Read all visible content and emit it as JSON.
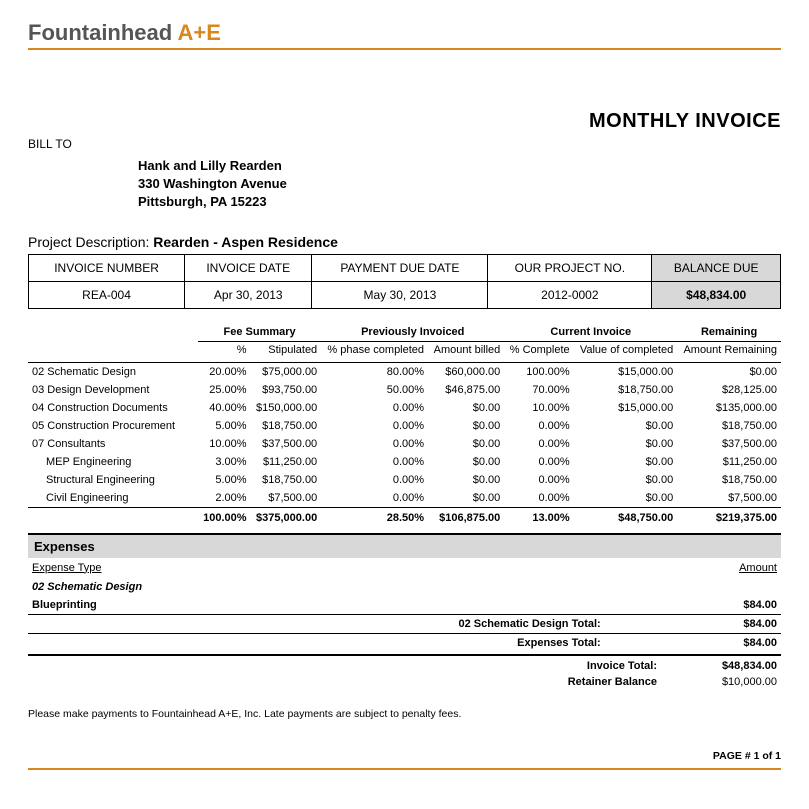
{
  "brand": {
    "name_a": "Fountainhead ",
    "name_b": "A+E",
    "accent_color": "#d8871f"
  },
  "doc_title": "MONTHLY INVOICE",
  "bill_to": {
    "label": "BILL TO",
    "name": "Hank and Lilly Rearden",
    "street": "330 Washington Avenue",
    "city_line": "Pittsburgh,  PA  15223"
  },
  "project": {
    "label": "Project Description:",
    "value": "Rearden - Aspen Residence"
  },
  "info": {
    "headers": {
      "num": "INVOICE NUMBER",
      "date": "INVOICE DATE",
      "due": "PAYMENT DUE DATE",
      "proj": "OUR PROJECT NO.",
      "bal": "BALANCE DUE"
    },
    "values": {
      "num": "REA-004",
      "date": "Apr 30, 2013",
      "due": "May 30, 2013",
      "proj": "2012-0002",
      "bal": "$48,834.00"
    }
  },
  "fee": {
    "groups": {
      "summary": "Fee Summary",
      "prev": "Previously Invoiced",
      "curr": "Current Invoice",
      "rem": "Remaining"
    },
    "subs": {
      "pct": "%",
      "stip": "Stipulated",
      "phase": "% phase completed",
      "billed": "Amount billed",
      "cpct": "% Complete",
      "cval": "Value of completed",
      "ramt": "Amount Remaining"
    },
    "rows": [
      {
        "label": "02 Schematic Design",
        "pct": "20.00%",
        "stip": "$75,000.00",
        "phase": "80.00%",
        "billed": "$60,000.00",
        "cpct": "100.00%",
        "cval": "$15,000.00",
        "rem": "$0.00",
        "indent": false
      },
      {
        "label": "03 Design Development",
        "pct": "25.00%",
        "stip": "$93,750.00",
        "phase": "50.00%",
        "billed": "$46,875.00",
        "cpct": "70.00%",
        "cval": "$18,750.00",
        "rem": "$28,125.00",
        "indent": false
      },
      {
        "label": "04 Construction Documents",
        "pct": "40.00%",
        "stip": "$150,000.00",
        "phase": "0.00%",
        "billed": "$0.00",
        "cpct": "10.00%",
        "cval": "$15,000.00",
        "rem": "$135,000.00",
        "indent": false
      },
      {
        "label": "05 Construction Procurement",
        "pct": "5.00%",
        "stip": "$18,750.00",
        "phase": "0.00%",
        "billed": "$0.00",
        "cpct": "0.00%",
        "cval": "$0.00",
        "rem": "$18,750.00",
        "indent": false
      },
      {
        "label": "07 Consultants",
        "pct": "10.00%",
        "stip": "$37,500.00",
        "phase": "0.00%",
        "billed": "$0.00",
        "cpct": "0.00%",
        "cval": "$0.00",
        "rem": "$37,500.00",
        "indent": false
      },
      {
        "label": "MEP Engineering",
        "pct": "3.00%",
        "stip": "$11,250.00",
        "phase": "0.00%",
        "billed": "$0.00",
        "cpct": "0.00%",
        "cval": "$0.00",
        "rem": "$11,250.00",
        "indent": true
      },
      {
        "label": "Structural Engineering",
        "pct": "5.00%",
        "stip": "$18,750.00",
        "phase": "0.00%",
        "billed": "$0.00",
        "cpct": "0.00%",
        "cval": "$0.00",
        "rem": "$18,750.00",
        "indent": true
      },
      {
        "label": "Civil Engineering",
        "pct": "2.00%",
        "stip": "$7,500.00",
        "phase": "0.00%",
        "billed": "$0.00",
        "cpct": "0.00%",
        "cval": "$0.00",
        "rem": "$7,500.00",
        "indent": true
      }
    ],
    "total": {
      "pct": "100.00%",
      "stip": "$375,000.00",
      "phase": "28.50%",
      "billed": "$106,875.00",
      "cpct": "13.00%",
      "cval": "$48,750.00",
      "rem": "$219,375.00"
    }
  },
  "expenses": {
    "heading": "Expenses",
    "col_type": "Expense Type",
    "col_amt": "Amount",
    "category": "02 Schematic Design",
    "line_label": "Blueprinting",
    "line_amt": "$84.00",
    "cat_total_label": "02 Schematic Design Total:",
    "cat_total_amt": "$84.00",
    "grand_label": "Expenses Total:",
    "grand_amt": "$84.00"
  },
  "totals": {
    "invoice_label": "Invoice Total:",
    "invoice_val": "$48,834.00",
    "retainer_label": "Retainer Balance",
    "retainer_val": "$10,000.00"
  },
  "footnote": "Please make payments to Fountainhead A+E, Inc. Late payments are subject to penalty fees.",
  "page": "PAGE # 1 of 1"
}
